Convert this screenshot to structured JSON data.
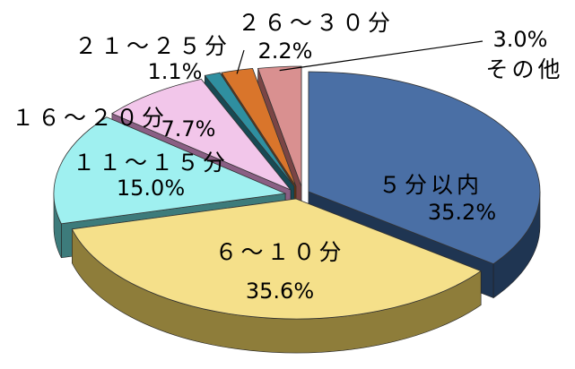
{
  "chart_data": {
    "type": "pie",
    "title": "",
    "slices": [
      {
        "label": "５分以内",
        "value": 35.2,
        "pct_label": "35.2%",
        "color": "#4a6fa5",
        "dark": "#1f3552"
      },
      {
        "label": "６～１０分",
        "value": 35.6,
        "pct_label": "35.6%",
        "color": "#f5e08a",
        "dark": "#8e7d3a"
      },
      {
        "label": "１１～１５分",
        "value": 15.0,
        "pct_label": "15.0%",
        "color": "#9ff0f0",
        "dark": "#3d7b7b"
      },
      {
        "label": "１６～２０分",
        "value": 7.7,
        "pct_label": "7.7%",
        "color": "#f2c6ea",
        "dark": "#8a5f84"
      },
      {
        "label": "２１～２５分",
        "value": 1.1,
        "pct_label": "1.1%",
        "color": "#2f8fa0",
        "dark": "#174a54"
      },
      {
        "label": "２６～３０分",
        "value": 2.2,
        "pct_label": "2.2%",
        "color": "#d9752b",
        "dark": "#6e3a12"
      },
      {
        "label": "その他",
        "value": 3.0,
        "pct_label": "3.0%",
        "color": "#d99090",
        "dark": "#7a4545"
      }
    ]
  }
}
